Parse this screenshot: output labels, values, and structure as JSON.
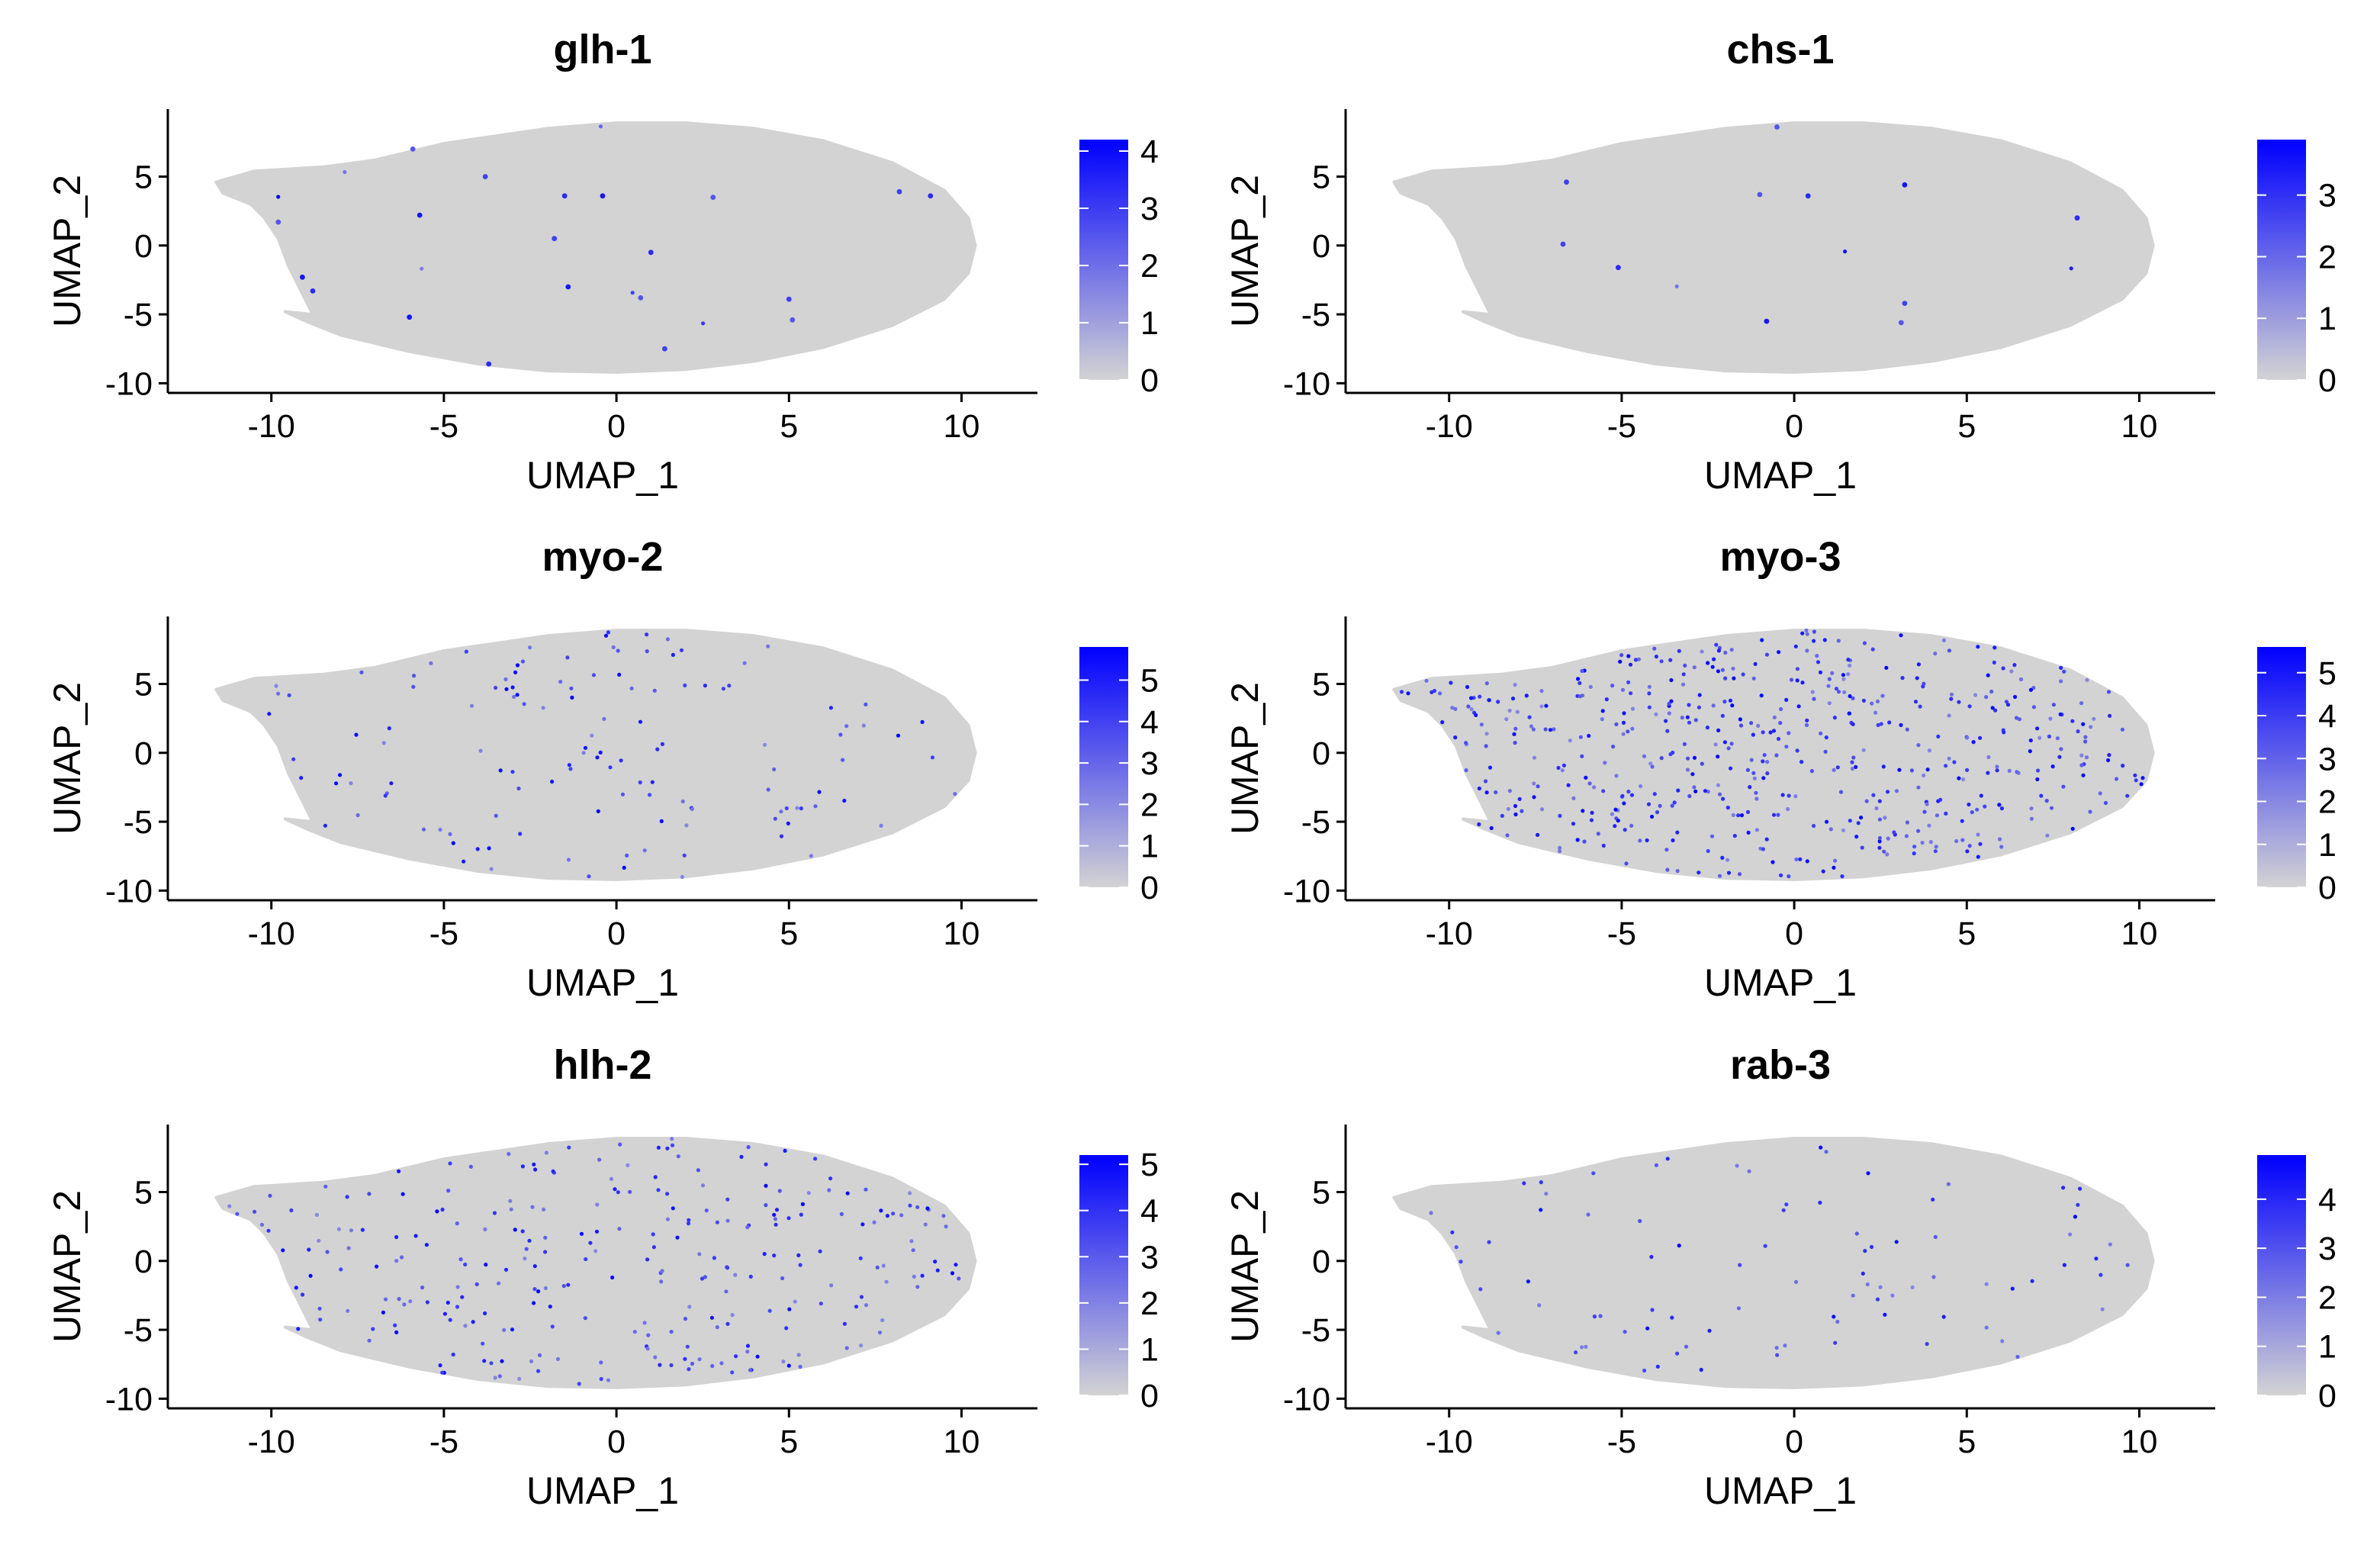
{
  "chart_data": [
    {
      "type": "scatter",
      "title": "glh-1",
      "xlabel": "UMAP_1",
      "ylabel": "UMAP_2",
      "xlim": [
        -13,
        12.2
      ],
      "ylim": [
        -10.7,
        9.9
      ],
      "xticks": [
        -10,
        -5,
        0,
        5,
        10
      ],
      "yticks": [
        -10,
        -5,
        0,
        5
      ],
      "xtick_labels": [
        "-10",
        "-5",
        "0",
        "5",
        "10"
      ],
      "ytick_labels": [
        "-10",
        "-5",
        "0",
        "5"
      ],
      "color_low": "#d3d3d3",
      "color_high": "#0000ff",
      "legend": {
        "type": "colorbar",
        "placement": "right",
        "min": 0,
        "max": 4.2,
        "ticks": [
          0,
          1,
          2,
          3,
          4
        ],
        "tick_labels": [
          "0",
          "1",
          "2",
          "3",
          "4"
        ]
      },
      "expression_density": 0.004,
      "expressing_points": [
        [
          -5.9,
          7
        ],
        [
          -3.8,
          5
        ],
        [
          -1.5,
          3.6
        ],
        [
          -0.4,
          3.6
        ],
        [
          2.8,
          3.5
        ],
        [
          8.2,
          3.9
        ],
        [
          9.1,
          3.6
        ],
        [
          -5.7,
          2.2
        ],
        [
          -9.8,
          1.7
        ],
        [
          -1.8,
          0.5
        ],
        [
          1,
          -0.5
        ],
        [
          -1.4,
          -3
        ],
        [
          0.7,
          -3.8
        ],
        [
          5,
          -3.9
        ],
        [
          -8.8,
          -3.3
        ],
        [
          -6,
          -5.2
        ],
        [
          5.1,
          -5.4
        ],
        [
          1.4,
          -7.5
        ],
        [
          -3.7,
          -8.6
        ],
        [
          -9.1,
          -2.3
        ]
      ]
    },
    {
      "type": "scatter",
      "title": "chs-1",
      "xlabel": "UMAP_1",
      "ylabel": "UMAP_2",
      "xlim": [
        -13,
        12.2
      ],
      "ylim": [
        -10.7,
        9.9
      ],
      "xticks": [
        -10,
        -5,
        0,
        5,
        10
      ],
      "yticks": [
        -10,
        -5,
        0,
        5
      ],
      "xtick_labels": [
        "-10",
        "-5",
        "0",
        "5",
        "10"
      ],
      "ytick_labels": [
        "-10",
        "-5",
        "0",
        "5"
      ],
      "color_low": "#d3d3d3",
      "color_high": "#0000ff",
      "legend": {
        "type": "colorbar",
        "placement": "right",
        "min": 0,
        "max": 3.9,
        "ticks": [
          0,
          1,
          2,
          3
        ],
        "tick_labels": [
          "0",
          "1",
          "2",
          "3"
        ]
      },
      "expression_density": 0.002,
      "expressing_points": [
        [
          -0.5,
          8.6
        ],
        [
          -6.6,
          4.6
        ],
        [
          0.4,
          3.6
        ],
        [
          3.2,
          4.4
        ],
        [
          -1,
          3.7
        ],
        [
          -6.7,
          0.1
        ],
        [
          -5.1,
          -1.6
        ],
        [
          -0.8,
          -5.5
        ],
        [
          3.1,
          -5.6
        ],
        [
          3.2,
          -4.2
        ],
        [
          8.2,
          2
        ]
      ]
    },
    {
      "type": "scatter",
      "title": "myo-2",
      "xlabel": "UMAP_1",
      "ylabel": "UMAP_2",
      "xlim": [
        -13,
        12.2
      ],
      "ylim": [
        -10.7,
        9.9
      ],
      "xticks": [
        -10,
        -5,
        0,
        5,
        10
      ],
      "yticks": [
        -10,
        -5,
        0,
        5
      ],
      "xtick_labels": [
        "-10",
        "-5",
        "0",
        "5",
        "10"
      ],
      "ytick_labels": [
        "-10",
        "-5",
        "0",
        "5"
      ],
      "color_low": "#d3d3d3",
      "color_high": "#0000ff",
      "legend": {
        "type": "colorbar",
        "placement": "right",
        "min": 0,
        "max": 5.8,
        "ticks": [
          0,
          1,
          2,
          3,
          4,
          5
        ],
        "tick_labels": [
          "0",
          "1",
          "2",
          "3",
          "4",
          "5"
        ]
      },
      "expression_density": 0.08,
      "expressing_points": []
    },
    {
      "type": "scatter",
      "title": "myo-3",
      "xlabel": "UMAP_1",
      "ylabel": "UMAP_2",
      "xlim": [
        -13,
        12.2
      ],
      "ylim": [
        -10.7,
        9.9
      ],
      "xticks": [
        -10,
        -5,
        0,
        5,
        10
      ],
      "yticks": [
        -10,
        -5,
        0,
        5
      ],
      "xtick_labels": [
        "-10",
        "-5",
        "0",
        "5",
        "10"
      ],
      "ytick_labels": [
        "-10",
        "-5",
        "0",
        "5"
      ],
      "color_low": "#d3d3d3",
      "color_high": "#0000ff",
      "legend": {
        "type": "colorbar",
        "placement": "right",
        "min": 0,
        "max": 5.6,
        "ticks": [
          0,
          1,
          2,
          3,
          4,
          5
        ],
        "tick_labels": [
          "0",
          "1",
          "2",
          "3",
          "4",
          "5"
        ]
      },
      "expression_density": 0.34,
      "expressing_points": []
    },
    {
      "type": "scatter",
      "title": "hlh-2",
      "xlabel": "UMAP_1",
      "ylabel": "UMAP_2",
      "xlim": [
        -13,
        12.2
      ],
      "ylim": [
        -10.7,
        9.9
      ],
      "xticks": [
        -10,
        -5,
        0,
        5,
        10
      ],
      "yticks": [
        -10,
        -5,
        0,
        5
      ],
      "xtick_labels": [
        "-10",
        "-5",
        "0",
        "5",
        "10"
      ],
      "ytick_labels": [
        "-10",
        "-5",
        "0",
        "5"
      ],
      "color_low": "#d3d3d3",
      "color_high": "#0000ff",
      "legend": {
        "type": "colorbar",
        "placement": "right",
        "min": 0,
        "max": 5.2,
        "ticks": [
          0,
          1,
          2,
          3,
          4,
          5
        ],
        "tick_labels": [
          "0",
          "1",
          "2",
          "3",
          "4",
          "5"
        ]
      },
      "expression_density": 0.17,
      "expressing_points": []
    },
    {
      "type": "scatter",
      "title": "rab-3",
      "xlabel": "UMAP_1",
      "ylabel": "UMAP_2",
      "xlim": [
        -13,
        12.2
      ],
      "ylim": [
        -10.7,
        9.9
      ],
      "xticks": [
        -10,
        -5,
        0,
        5,
        10
      ],
      "yticks": [
        -10,
        -5,
        0,
        5
      ],
      "xtick_labels": [
        "-10",
        "-5",
        "0",
        "5",
        "10"
      ],
      "ytick_labels": [
        "-10",
        "-5",
        "0",
        "5"
      ],
      "color_low": "#d3d3d3",
      "color_high": "#0000ff",
      "legend": {
        "type": "colorbar",
        "placement": "right",
        "min": 0,
        "max": 4.9,
        "ticks": [
          0,
          1,
          2,
          3,
          4
        ],
        "tick_labels": [
          "0",
          "1",
          "2",
          "3",
          "4"
        ]
      },
      "expression_density": 0.055,
      "expressing_points": []
    }
  ]
}
